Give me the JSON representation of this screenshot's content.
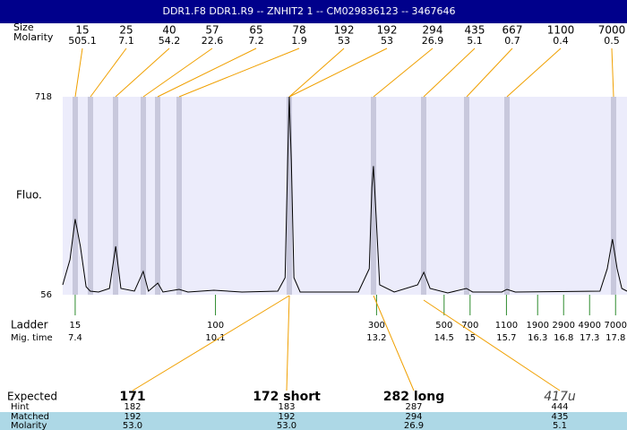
{
  "header": {
    "title": "DDR1.F8  DDR1.R9 -- ZNHIT2 1 -- CM029836123 -- 3467646"
  },
  "row_labels": {
    "size": "Size",
    "molarity": "Molarity",
    "ladder": "Ladder",
    "mig_time": "Mig. time",
    "expected": "Expected",
    "hint": "Hint",
    "matched": "Matched",
    "molarity_bottom": "Molarity"
  },
  "peaks": [
    {
      "size": 15,
      "molarity": 505.1
    },
    {
      "size": 25,
      "molarity": 7.1
    },
    {
      "size": 40,
      "molarity": 54.2
    },
    {
      "size": 57,
      "molarity": 22.6
    },
    {
      "size": 65,
      "molarity": 7.2
    },
    {
      "size": 78,
      "molarity": 1.9
    },
    {
      "size": 192,
      "molarity": 53
    },
    {
      "size": 192,
      "molarity": 53
    },
    {
      "size": 294,
      "molarity": 26.9
    },
    {
      "size": 435,
      "molarity": 5.1
    },
    {
      "size": 667,
      "molarity": 0.7
    },
    {
      "size": 1100,
      "molarity": 0.4
    },
    {
      "size": 7000,
      "molarity": 0.5
    }
  ],
  "ladder": [
    {
      "size": 15,
      "mig_time": 7.4
    },
    {
      "size": 100,
      "mig_time": 10.1
    },
    {
      "size": 300,
      "mig_time": 13.2
    },
    {
      "size": 500,
      "mig_time": 14.5
    },
    {
      "size": 700,
      "mig_time": 15
    },
    {
      "size": 1100,
      "mig_time": 15.7
    },
    {
      "size": 1900,
      "mig_time": 16.3
    },
    {
      "size": 2900,
      "mig_time": 16.8
    },
    {
      "size": 4900,
      "mig_time": 17.3
    },
    {
      "size": 7000,
      "mig_time": 17.8
    }
  ],
  "results": [
    {
      "expected": "171",
      "hint": 182,
      "matched": 192,
      "molarity": "53.0"
    },
    {
      "expected": "172 short",
      "hint": 183,
      "matched": 192,
      "molarity": "53.0"
    },
    {
      "expected": "282 long",
      "hint": 287,
      "matched": 294,
      "molarity": "26.9"
    },
    {
      "expected": "417u",
      "hint": 444,
      "matched": 435,
      "molarity": "5.1"
    }
  ],
  "chart_data": {
    "type": "line",
    "ylabel": "Fluo.",
    "x": [
      7.16,
      7.3,
      7.4,
      7.5,
      7.61,
      7.69,
      7.85,
      8.06,
      8.18,
      8.28,
      8.54,
      8.71,
      8.81,
      8.99,
      9.09,
      9.4,
      9.57,
      10.07,
      10.61,
      11.3,
      11.44,
      11.49,
      11.52,
      11.56,
      11.61,
      11.73,
      12.85,
      13.06,
      13.11,
      13.14,
      13.19,
      13.26,
      13.54,
      13.99,
      14.11,
      14.23,
      14.57,
      14.93,
      15.05,
      15.61,
      15.71,
      15.87,
      17.5,
      17.64,
      17.74,
      17.83,
      17.92,
      18.02
    ],
    "series": [
      {
        "color": "#000000",
        "values": [
          89,
          173,
          309,
          218,
          83,
          68,
          65,
          77,
          218,
          77,
          68,
          134,
          68,
          95,
          65,
          74,
          65,
          71,
          65,
          68,
          113,
          504,
          718,
          504,
          113,
          65,
          65,
          143,
          414,
          486,
          324,
          89,
          65,
          89,
          131,
          77,
          62,
          77,
          65,
          65,
          74,
          65,
          68,
          143,
          242,
          143,
          77,
          68
        ]
      }
    ],
    "xlim": [
      7.16,
      18.02
    ],
    "ylim": [
      56,
      718
    ],
    "yticks": [
      56,
      718
    ]
  }
}
